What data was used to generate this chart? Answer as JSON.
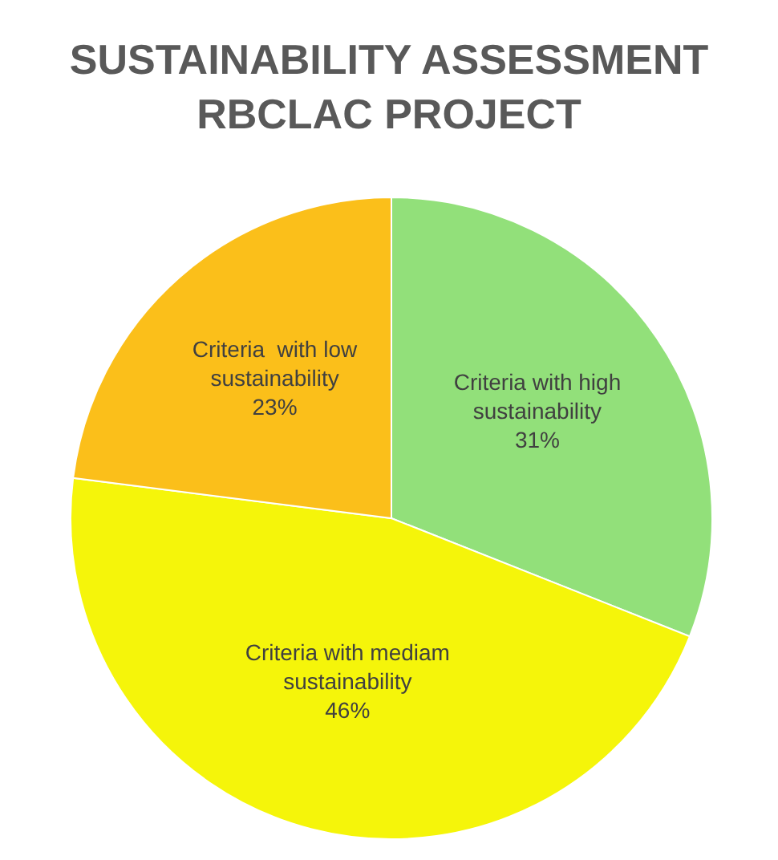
{
  "chart_data": {
    "type": "pie",
    "title": "SUSTAINABILITY ASSESSMENT RBCLAC PROJECT",
    "categories": [
      "Criteria with high sustainability",
      "Criteria with mediam sustainability",
      "Criteria  with low sustainability"
    ],
    "values": [
      31,
      46,
      23
    ],
    "value_labels": [
      "31%",
      "46%",
      "23%"
    ],
    "colors": [
      "#92e07a",
      "#f5f50a",
      "#fbbf1a"
    ]
  }
}
